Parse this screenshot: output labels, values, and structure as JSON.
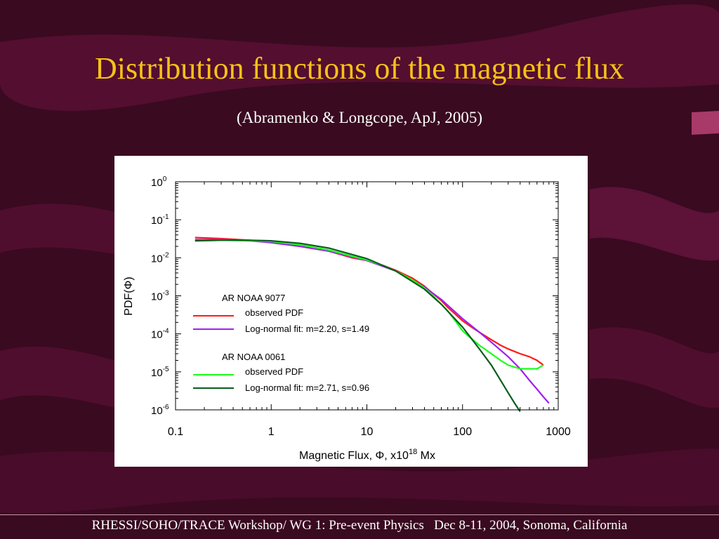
{
  "slide": {
    "title": "Distribution functions of the magnetic flux",
    "subtitle": "(Abramenko & Longcope, ApJ, 2005)",
    "footer": "RHESSI/SOHO/TRACE Workshop/ WG 1: Pre-event Physics   Dec 8-11, 2004, Sonoma, California",
    "colors": {
      "background": "#3a0a20",
      "title": "#f6c215",
      "text": "#ffffff"
    }
  },
  "chart_data": {
    "type": "line",
    "xlabel": "Magnetic Flux, Φ, x10",
    "xlabel_sup": "18",
    "xlabel_suffix": " Mx",
    "ylabel": "PDF(Φ)",
    "xscale": "log",
    "yscale": "log",
    "xlim": [
      0.1,
      1000
    ],
    "ylim": [
      1e-06,
      1
    ],
    "x_ticks": [
      "0.1",
      "1",
      "10",
      "100",
      "1000"
    ],
    "y_ticks": [
      {
        "base": "10",
        "exp": "0"
      },
      {
        "base": "10",
        "exp": "-1"
      },
      {
        "base": "10",
        "exp": "-2"
      },
      {
        "base": "10",
        "exp": "-3"
      },
      {
        "base": "10",
        "exp": "-4"
      },
      {
        "base": "10",
        "exp": "-5"
      },
      {
        "base": "10",
        "exp": "-6"
      }
    ],
    "legend_position": "lower-left",
    "legend": [
      {
        "heading": "AR NOAA 9077"
      },
      {
        "label": "observed PDF",
        "color": "#ff1a1a"
      },
      {
        "label": "Log-normal fit: m=2.20, s=1.49",
        "color": "#a020f0"
      },
      {
        "heading": "AR NOAA 0061"
      },
      {
        "label": "observed PDF",
        "color": "#19ff19"
      },
      {
        "label": "Log-normal fit: m=2.71, s=0.96",
        "color": "#0b5e1e"
      }
    ],
    "series": [
      {
        "key": "ar9077_observed",
        "color": "#ff1a1a",
        "x": [
          0.16,
          0.3,
          0.6,
          1,
          2,
          4,
          7,
          10,
          15,
          20,
          30,
          40,
          50,
          60,
          70,
          80,
          100,
          120,
          150,
          200,
          250,
          300,
          400,
          500,
          600,
          700
        ],
        "y": [
          0.034,
          0.032,
          0.029,
          0.026,
          0.02,
          0.015,
          0.01,
          0.0085,
          0.0062,
          0.0047,
          0.0029,
          0.0018,
          0.0011,
          0.00075,
          0.0005,
          0.00037,
          0.00022,
          0.00016,
          0.00011,
          7e-05,
          5e-05,
          4e-05,
          3e-05,
          2.5e-05,
          2e-05,
          1.5e-05
        ]
      },
      {
        "key": "ar9077_fit",
        "color": "#a020f0",
        "x": [
          0.16,
          0.3,
          0.6,
          1,
          2,
          4,
          10,
          20,
          40,
          60,
          100,
          150,
          200,
          300,
          400,
          500,
          600,
          700,
          800
        ],
        "y": [
          0.03,
          0.03,
          0.028,
          0.025,
          0.02,
          0.015,
          0.0085,
          0.0045,
          0.0017,
          0.0008,
          0.00025,
          0.00011,
          6e-05,
          2.5e-05,
          1.2e-05,
          6e-06,
          3.5e-06,
          2.2e-06,
          1.5e-06
        ]
      },
      {
        "key": "ar0061_observed",
        "color": "#19ff19",
        "x": [
          0.16,
          0.3,
          0.6,
          1,
          2,
          4,
          7,
          10,
          15,
          20,
          30,
          40,
          50,
          60,
          70,
          80,
          100,
          120,
          150,
          200,
          250,
          300,
          400,
          500,
          600,
          700
        ],
        "y": [
          0.028,
          0.029,
          0.028,
          0.027,
          0.022,
          0.016,
          0.011,
          0.0088,
          0.0062,
          0.0045,
          0.0026,
          0.0016,
          0.00095,
          0.0006,
          0.0004,
          0.00026,
          0.00012,
          8e-05,
          5e-05,
          3e-05,
          2e-05,
          1.5e-05,
          1.2e-05,
          1.2e-05,
          1.2e-05,
          1.5e-05
        ]
      },
      {
        "key": "ar0061_fit",
        "color": "#0b5e1e",
        "x": [
          0.16,
          0.3,
          0.6,
          1,
          2,
          4,
          10,
          20,
          40,
          60,
          100,
          150,
          200,
          250,
          300,
          350,
          400
        ],
        "y": [
          0.028,
          0.029,
          0.029,
          0.028,
          0.024,
          0.018,
          0.0095,
          0.0045,
          0.0015,
          0.0006,
          0.00015,
          4e-05,
          1.5e-05,
          6e-06,
          2.8e-06,
          1.5e-06,
          9e-07
        ]
      }
    ]
  }
}
